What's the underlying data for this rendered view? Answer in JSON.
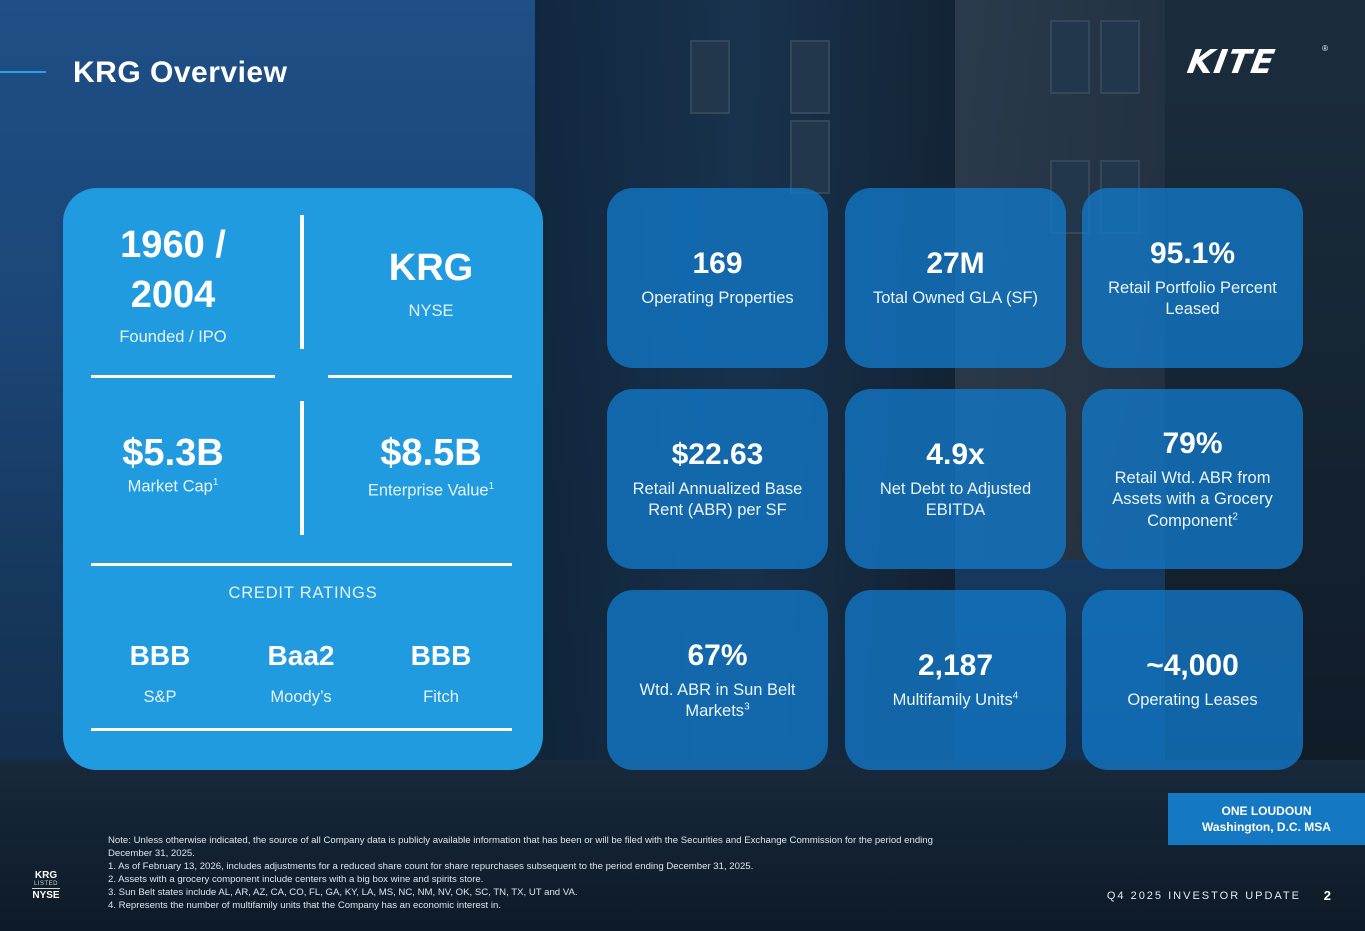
{
  "header": {
    "title": "KRG Overview",
    "logo_text": "KITE",
    "logo_mark": "®"
  },
  "overview": {
    "founded": {
      "value_line1": "1960 /",
      "value_line2": "2004",
      "label": "Founded / IPO"
    },
    "ticker": {
      "value": "KRG",
      "label": "NYSE"
    },
    "market_cap": {
      "value": "$5.3B",
      "label": "Market Cap",
      "sup": "1"
    },
    "enterprise_value": {
      "value": "$8.5B",
      "label": "Enterprise Value",
      "sup": "1"
    },
    "credit_title": "CREDIT RATINGS",
    "ratings": [
      {
        "rating": "BBB",
        "agency": "S&P"
      },
      {
        "rating": "Baa2",
        "agency": "Moody’s"
      },
      {
        "rating": "BBB",
        "agency": "Fitch"
      }
    ]
  },
  "tiles": [
    {
      "value": "169",
      "label": "Operating Properties",
      "sup": ""
    },
    {
      "value": "27M",
      "label": "Total Owned GLA (SF)",
      "sup": ""
    },
    {
      "value": "95.1%",
      "label": "Retail Portfolio Percent Leased",
      "sup": ""
    },
    {
      "value": "$22.63",
      "label": "Retail Annualized Base Rent (ABR) per SF",
      "sup": ""
    },
    {
      "value": "4.9x",
      "label": "Net Debt to Adjusted EBITDA",
      "sup": ""
    },
    {
      "value": "79%",
      "label": "Retail Wtd. ABR from Assets with a Grocery Component",
      "sup": "2"
    },
    {
      "value": "67%",
      "label": "Wtd. ABR in Sun Belt Markets",
      "sup": "3"
    },
    {
      "value": "2,187",
      "label": "Multifamily Units",
      "sup": "4"
    },
    {
      "value": "~4,000",
      "label": "Operating Leases",
      "sup": ""
    }
  ],
  "location": {
    "name": "ONE LOUDOUN",
    "region": "Washington, D.C. MSA"
  },
  "notes": {
    "intro": "Note:  Unless otherwise indicated, the source of all Company data is publicly available information that has been or will be filed with the Securities and Exchange Commission for the period ending December 31, 2025.",
    "items": [
      "1.   As of February 13, 2026, includes adjustments for a reduced share count for share repurchases subsequent to the period ending December 31, 2025.",
      "2.   Assets with a grocery component include centers with a big box wine and spirits store.",
      "3.   Sun Belt states include AL, AR, AZ, CA, CO, FL, GA, KY, LA, MS, NC, NM, NV, OK, SC, TN, TX, UT and VA.",
      "4.   Represents the number of multifamily units that the Company has an economic interest in."
    ]
  },
  "listing": {
    "ticker": "KRG",
    "listed": "LISTED",
    "exchange": "NYSE"
  },
  "footer": {
    "label": "Q4 2025 INVESTOR UPDATE",
    "page": "2"
  }
}
